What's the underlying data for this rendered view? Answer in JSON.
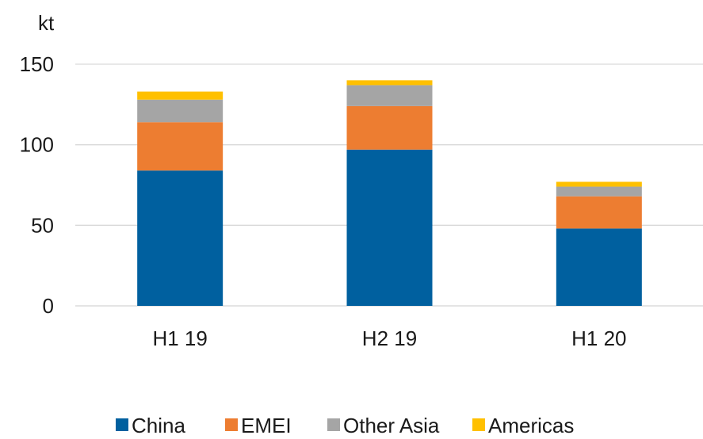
{
  "chart_data": {
    "type": "bar",
    "stacked": true,
    "unit_label": "kt",
    "categories": [
      "H1 19",
      "H2 19",
      "H1 20"
    ],
    "series": [
      {
        "name": "China",
        "values": [
          84,
          97,
          48
        ],
        "color": "#00609f"
      },
      {
        "name": "EMEI",
        "values": [
          30,
          27,
          20
        ],
        "color": "#ed7d31"
      },
      {
        "name": "Other Asia",
        "values": [
          14,
          13,
          6
        ],
        "color": "#a5a5a5"
      },
      {
        "name": "Americas",
        "values": [
          5,
          3,
          3
        ],
        "color": "#ffc000"
      }
    ],
    "yticks": [
      0,
      50,
      100,
      150
    ],
    "ylim": [
      0,
      150
    ],
    "grid": true,
    "legend_position": "bottom",
    "title": "",
    "xlabel": "",
    "ylabel": ""
  }
}
